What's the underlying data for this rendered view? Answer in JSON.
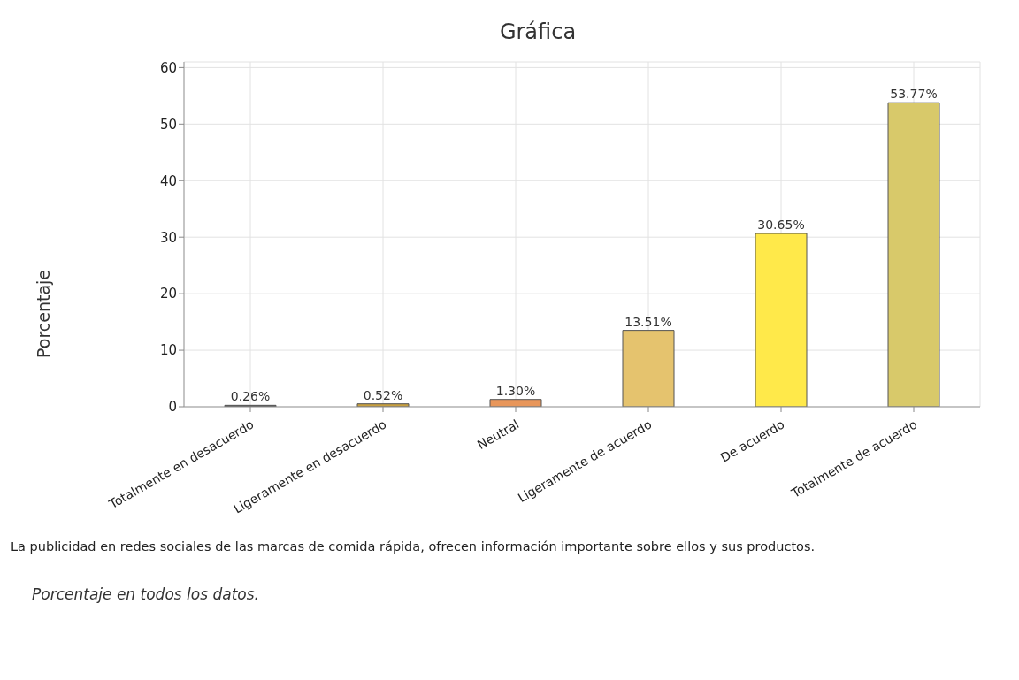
{
  "chart_data": {
    "type": "bar",
    "title": "Gráfica",
    "xlabel": "La publicidad en redes sociales de las marcas de comida rápida, ofrecen información importante sobre ellos y sus productos.",
    "ylabel": "Porcentaje",
    "annotations": [
      "Porcentaje en todos los datos."
    ],
    "categories": [
      "Totalmente en desacuerdo",
      "Ligeramente en desacuerdo",
      "Neutral",
      "Ligeramente de acuerdo",
      "De acuerdo",
      "Totalmente de acuerdo"
    ],
    "values": [
      0.26,
      0.52,
      1.3,
      13.51,
      30.65,
      53.77
    ],
    "colors": [
      "#555555",
      "#c8a040",
      "#e8965a",
      "#e5c36e",
      "#ffe94a",
      "#d8c96a"
    ],
    "value_labels": [
      "0.26%",
      "0.52%",
      "1.30%",
      "13.51%",
      "30.65%",
      "53.77%"
    ],
    "ylim": [
      0,
      61
    ],
    "yticks": [
      0,
      10,
      20,
      30,
      40,
      50,
      60
    ],
    "grid": true
  }
}
